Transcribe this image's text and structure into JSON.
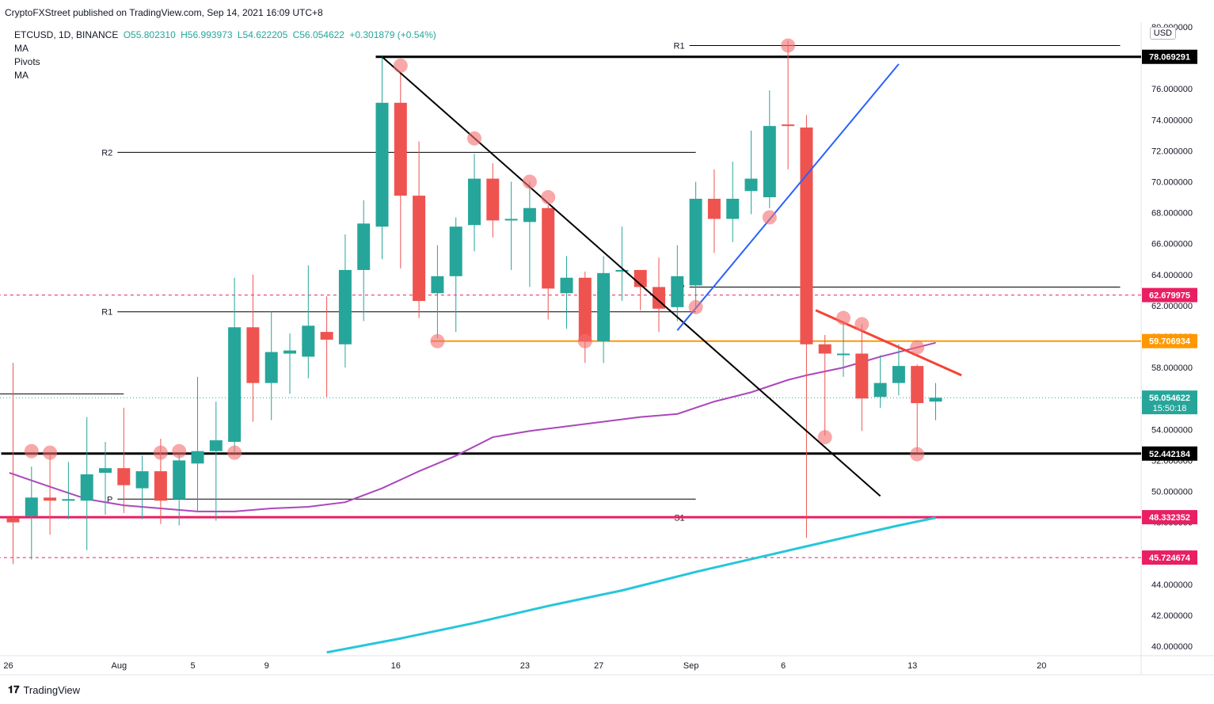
{
  "header": {
    "published": "CryptoFXStreet published on TradingView.com, Sep 14, 2021 16:09 UTC+8",
    "symbol": "ETCUSD, 1D, BINANCE",
    "open": "O55.802310",
    "high": "H56.993973",
    "low": "L54.622205",
    "close": "C56.054622",
    "change": "+0.301879 (+0.54%)",
    "indicators": [
      "MA",
      "Pivots",
      "MA"
    ],
    "currency": "USD"
  },
  "footer": {
    "brand": "TradingView"
  },
  "colors": {
    "up": "#26a69a",
    "down": "#ef5350",
    "ma_slow": "#26c6da",
    "ma_mid": "#ab47bc",
    "support": "#e91e63",
    "orange": "#ff9800",
    "blue": "#2962ff"
  },
  "chart_data": {
    "type": "candlestick",
    "ylim": [
      39.5,
      80.5
    ],
    "y_ticks": [
      "40.000000",
      "42.000000",
      "44.000000",
      "46.000000",
      "48.000000",
      "50.000000",
      "52.000000",
      "54.000000",
      "56.000000",
      "58.000000",
      "60.000000",
      "62.000000",
      "64.000000",
      "66.000000",
      "68.000000",
      "70.000000",
      "72.000000",
      "74.000000",
      "76.000000",
      "78.000000",
      "80.000000"
    ],
    "x_labels": [
      {
        "label": "26",
        "day": 0
      },
      {
        "label": "Aug",
        "day": 6
      },
      {
        "label": "5",
        "day": 10
      },
      {
        "label": "9",
        "day": 14
      },
      {
        "label": "16",
        "day": 21
      },
      {
        "label": "23",
        "day": 28
      },
      {
        "label": "27",
        "day": 32
      },
      {
        "label": "Sep",
        "day": 37
      },
      {
        "label": "6",
        "day": 42
      },
      {
        "label": "13",
        "day": 49
      },
      {
        "label": "20",
        "day": 56
      }
    ],
    "candles": [
      [
        48.3,
        58.3,
        45.3,
        48.0
      ],
      [
        48.4,
        51.6,
        45.6,
        49.6
      ],
      [
        49.6,
        52.4,
        47.2,
        49.4
      ],
      [
        49.4,
        51.9,
        48.2,
        49.5
      ],
      [
        49.4,
        54.8,
        46.2,
        51.1
      ],
      [
        51.2,
        53.2,
        48.5,
        51.5
      ],
      [
        51.5,
        55.4,
        48.6,
        50.4
      ],
      [
        50.2,
        52.3,
        48.2,
        51.3
      ],
      [
        51.3,
        53.4,
        47.9,
        49.4
      ],
      [
        49.5,
        52.4,
        47.8,
        52.0
      ],
      [
        51.8,
        57.4,
        48.7,
        52.6
      ],
      [
        52.6,
        55.8,
        48.1,
        53.3
      ],
      [
        53.2,
        63.8,
        52.5,
        60.6
      ],
      [
        60.6,
        64.0,
        54.5,
        57.0
      ],
      [
        57.0,
        61.6,
        54.6,
        59.0
      ],
      [
        58.9,
        60.2,
        56.3,
        59.1
      ],
      [
        58.7,
        64.6,
        57.3,
        60.7
      ],
      [
        60.3,
        62.6,
        56.1,
        59.8
      ],
      [
        59.5,
        66.6,
        58.0,
        64.3
      ],
      [
        64.3,
        68.8,
        61.0,
        67.3
      ],
      [
        67.1,
        78.1,
        65.0,
        75.1
      ],
      [
        75.1,
        77.0,
        64.4,
        69.1
      ],
      [
        69.1,
        72.6,
        61.2,
        62.3
      ],
      [
        62.8,
        65.9,
        59.9,
        63.9
      ],
      [
        63.9,
        67.7,
        60.3,
        67.1
      ],
      [
        67.2,
        71.8,
        65.5,
        70.2
      ],
      [
        70.2,
        71.2,
        66.4,
        67.5
      ],
      [
        67.5,
        70.0,
        64.3,
        67.6
      ],
      [
        67.4,
        70.0,
        63.2,
        68.3
      ],
      [
        68.3,
        68.5,
        61.1,
        63.1
      ],
      [
        62.8,
        65.2,
        60.5,
        63.8
      ],
      [
        63.8,
        64.2,
        58.3,
        59.7
      ],
      [
        59.7,
        65.2,
        58.3,
        64.1
      ],
      [
        64.2,
        67.1,
        62.3,
        64.3
      ],
      [
        64.3,
        64.3,
        61.7,
        63.2
      ],
      [
        63.2,
        65.1,
        60.3,
        61.8
      ],
      [
        61.9,
        65.9,
        61.0,
        63.9
      ],
      [
        63.3,
        70.0,
        61.8,
        68.9
      ],
      [
        68.9,
        70.8,
        65.4,
        67.6
      ],
      [
        67.6,
        71.3,
        66.1,
        68.9
      ],
      [
        69.4,
        73.3,
        67.9,
        70.2
      ],
      [
        69.0,
        75.9,
        68.3,
        73.6
      ],
      [
        73.7,
        79.1,
        70.8,
        73.6
      ],
      [
        73.5,
        74.3,
        47.0,
        59.5
      ],
      [
        59.5,
        60.1,
        53.6,
        58.9
      ],
      [
        58.8,
        60.8,
        57.4,
        58.9
      ],
      [
        58.9,
        60.8,
        53.9,
        56.0
      ],
      [
        56.1,
        58.8,
        55.4,
        57.0
      ],
      [
        57.0,
        59.5,
        56.2,
        58.1
      ],
      [
        58.1,
        58.2,
        52.5,
        55.7
      ],
      [
        55.8,
        57.0,
        54.6,
        56.05
      ]
    ],
    "ma_mid": [
      [
        -0.2,
        51.2
      ],
      [
        2,
        50.3
      ],
      [
        4,
        49.5
      ],
      [
        6,
        49.1
      ],
      [
        8,
        48.9
      ],
      [
        10,
        48.7
      ],
      [
        12,
        48.7
      ],
      [
        14,
        48.9
      ],
      [
        16,
        49.0
      ],
      [
        18,
        49.3
      ],
      [
        20,
        50.2
      ],
      [
        22,
        51.3
      ],
      [
        24,
        52.3
      ],
      [
        26,
        53.5
      ],
      [
        28,
        53.9
      ],
      [
        30,
        54.2
      ],
      [
        32,
        54.5
      ],
      [
        34,
        54.8
      ],
      [
        36,
        55.0
      ],
      [
        38,
        55.8
      ],
      [
        40,
        56.4
      ],
      [
        42,
        57.2
      ],
      [
        43,
        57.5
      ],
      [
        45,
        58.0
      ],
      [
        47,
        58.7
      ],
      [
        49,
        59.3
      ],
      [
        50,
        59.6
      ]
    ],
    "ma_slow": [
      [
        17,
        39.6
      ],
      [
        21,
        40.5
      ],
      [
        25,
        41.5
      ],
      [
        29,
        42.6
      ],
      [
        33,
        43.6
      ],
      [
        37,
        44.8
      ],
      [
        41,
        45.9
      ],
      [
        45,
        47.0
      ],
      [
        48,
        47.8
      ],
      [
        50,
        48.3
      ]
    ],
    "pivots": [
      {
        "label": "R2",
        "value": 71.9,
        "from": 6,
        "to": 37
      },
      {
        "label": "R1",
        "value": 61.6,
        "from": 6,
        "to": 37
      },
      {
        "label": "P",
        "value": 49.5,
        "from": 6,
        "to": 37
      },
      {
        "label": "P",
        "value": 63.2,
        "from": 37,
        "to": 60
      },
      {
        "label": "R1",
        "value": 78.8,
        "from": 37,
        "to": 60
      },
      {
        "label": "S1",
        "value": 48.3,
        "from": 37,
        "to": 60
      },
      {
        "label": "",
        "value": 56.3,
        "from": -0.5,
        "to": 6
      }
    ],
    "price_labels": [
      {
        "value": 78.069291,
        "text": "78.069291",
        "color": "#000000"
      },
      {
        "value": 62.679975,
        "text": "62.679975",
        "color": "#e91e63"
      },
      {
        "value": 59.706934,
        "text": "59.706934",
        "color": "#ff9800"
      },
      {
        "value": 56.054622,
        "text": "56.054622",
        "text2": "15:50:18",
        "color": "#26a69a"
      },
      {
        "value": 52.442184,
        "text": "52.442184",
        "color": "#000000"
      },
      {
        "value": 48.332352,
        "text": "48.332352",
        "color": "#e91e63"
      },
      {
        "value": 45.724674,
        "text": "45.724674",
        "color": "#e91e63"
      }
    ],
    "trendlines": [
      {
        "from": [
          20,
          78.07
        ],
        "to": [
          47,
          49.7
        ],
        "color": "#000000",
        "width": 2
      },
      {
        "from": [
          36,
          60.4
        ],
        "to": [
          48,
          77.6
        ],
        "color": "#2962ff",
        "width": 2
      },
      {
        "from": [
          43.5,
          61.7
        ],
        "to": [
          51.4,
          57.5
        ],
        "color": "#f44336",
        "width": 3
      }
    ],
    "hlines": [
      {
        "value": 78.069291,
        "from": 20,
        "to": 60,
        "color": "#000000",
        "width": 3
      },
      {
        "value": 52.442184,
        "from": -0.3,
        "to": 60,
        "color": "#000000",
        "width": 3
      },
      {
        "value": 59.706934,
        "from": 23,
        "to": 60,
        "color": "#ff9800",
        "width": 2
      },
      {
        "value": 48.332352,
        "from": -0.5,
        "to": 60,
        "color": "#e91e63",
        "width": 3
      },
      {
        "value": 62.679975,
        "from": -0.5,
        "to": 60,
        "color": "#e91e63",
        "width": 1,
        "dash": true
      },
      {
        "value": 45.724674,
        "from": -0.5,
        "to": 60,
        "color": "#e91e63",
        "width": 1,
        "dash": true
      }
    ],
    "markers": [
      [
        1,
        52.6
      ],
      [
        2,
        52.5
      ],
      [
        8,
        52.5
      ],
      [
        9,
        52.6
      ],
      [
        12,
        52.5
      ],
      [
        21,
        77.5
      ],
      [
        23,
        59.7
      ],
      [
        25,
        72.8
      ],
      [
        28,
        70.0
      ],
      [
        29,
        69.0
      ],
      [
        31,
        59.7
      ],
      [
        37,
        61.9
      ],
      [
        41,
        67.7
      ],
      [
        42,
        78.8
      ],
      [
        44,
        53.5
      ],
      [
        45,
        61.2
      ],
      [
        46,
        60.8
      ],
      [
        49,
        52.4
      ],
      [
        49,
        59.3
      ]
    ]
  }
}
